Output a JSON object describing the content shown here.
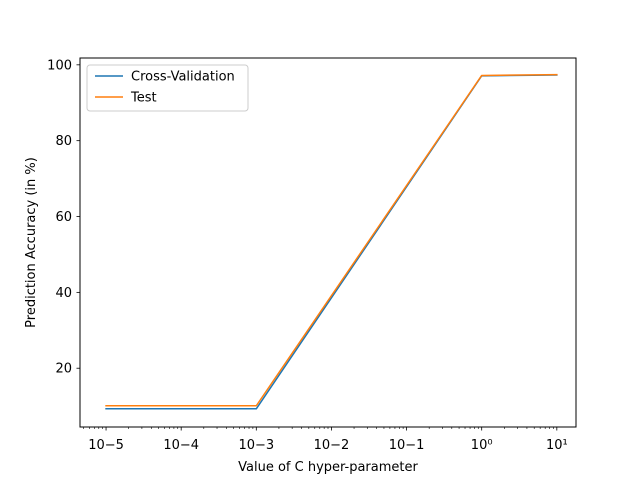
{
  "chart_data": {
    "type": "line",
    "xscale": "log",
    "xlabel": "Value of C hyper-parameter",
    "ylabel": "Prediction Accuracy (in %)",
    "xlim": [
      4.5e-06,
      18
    ],
    "ylim": [
      4.5,
      101.8
    ],
    "x_ticks": [
      {
        "value": 1e-05,
        "label": "10−5"
      },
      {
        "value": 0.0001,
        "label": "10−4"
      },
      {
        "value": 0.001,
        "label": "10−3"
      },
      {
        "value": 0.01,
        "label": "10−2"
      },
      {
        "value": 0.1,
        "label": "10−1"
      },
      {
        "value": 1,
        "label": "10⁰"
      },
      {
        "value": 10,
        "label": "10¹"
      }
    ],
    "y_ticks": [
      20,
      40,
      60,
      80,
      100
    ],
    "grid": false,
    "legend_position": "upper-left",
    "x": [
      1e-05,
      0.0001,
      0.001,
      1,
      10
    ],
    "series": [
      {
        "name": "Cross-Validation",
        "color": "#1f77b4",
        "values": [
          9.3,
          9.3,
          9.3,
          97.1,
          97.3
        ]
      },
      {
        "name": "Test",
        "color": "#ff7f0e",
        "values": [
          10.1,
          10.1,
          10.1,
          97.2,
          97.4
        ]
      }
    ]
  }
}
